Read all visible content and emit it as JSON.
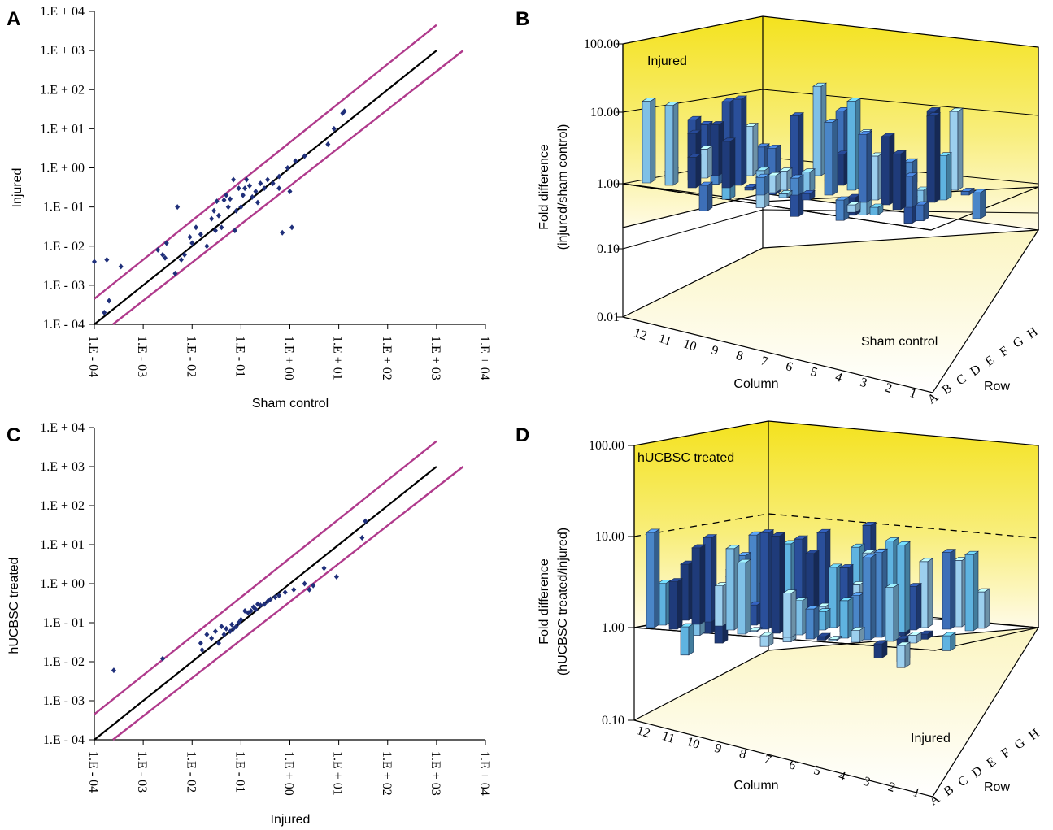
{
  "panels": [
    "A",
    "B",
    "C",
    "D"
  ],
  "chart_data": [
    {
      "panel": "A",
      "type": "scatter",
      "xlabel": "Sham control",
      "ylabel": "Injured",
      "scale": "log",
      "xlim": [
        0.0001,
        10000
      ],
      "ylim": [
        0.0001,
        10000
      ],
      "ticks": [
        "1.E - 04",
        "1.E - 03",
        "1.E - 02",
        "1.E - 01",
        "1.E + 00",
        "1.E + 01",
        "1.E + 02",
        "1.E + 03",
        "1.E + 04"
      ],
      "lines": {
        "identity_color": "#000000",
        "threshold_color": "#b03a8c"
      },
      "point_color": "#1f2f7a",
      "points": [
        [
          0.0001,
          0.004
        ],
        [
          0.00018,
          0.0045
        ],
        [
          0.00016,
          0.0002
        ],
        [
          0.0002,
          0.0004
        ],
        [
          0.00035,
          0.003
        ],
        [
          0.002,
          0.008
        ],
        [
          0.0025,
          0.006
        ],
        [
          0.0028,
          0.005
        ],
        [
          0.003,
          0.012
        ],
        [
          0.0045,
          0.002
        ],
        [
          0.005,
          0.1
        ],
        [
          0.006,
          0.0045
        ],
        [
          0.007,
          0.006
        ],
        [
          0.009,
          0.017
        ],
        [
          0.01,
          0.012
        ],
        [
          0.012,
          0.03
        ],
        [
          0.015,
          0.02
        ],
        [
          0.02,
          0.01
        ],
        [
          0.025,
          0.05
        ],
        [
          0.028,
          0.08
        ],
        [
          0.03,
          0.025
        ],
        [
          0.032,
          0.14
        ],
        [
          0.035,
          0.06
        ],
        [
          0.04,
          0.03
        ],
        [
          0.045,
          0.15
        ],
        [
          0.05,
          0.2
        ],
        [
          0.055,
          0.1
        ],
        [
          0.06,
          0.16
        ],
        [
          0.07,
          0.5
        ],
        [
          0.075,
          0.025
        ],
        [
          0.08,
          0.08
        ],
        [
          0.09,
          0.3
        ],
        [
          0.1,
          0.1
        ],
        [
          0.11,
          0.2
        ],
        [
          0.12,
          0.3
        ],
        [
          0.13,
          0.5
        ],
        [
          0.15,
          0.35
        ],
        [
          0.17,
          0.18
        ],
        [
          0.2,
          0.25
        ],
        [
          0.22,
          0.13
        ],
        [
          0.25,
          0.4
        ],
        [
          0.3,
          0.3
        ],
        [
          0.35,
          0.5
        ],
        [
          0.45,
          0.4
        ],
        [
          0.6,
          0.6
        ],
        [
          0.9,
          1.0
        ],
        [
          0.6,
          0.3
        ],
        [
          1.0,
          0.25
        ],
        [
          0.7,
          0.022
        ],
        [
          1.1,
          0.03
        ],
        [
          1.3,
          1.5
        ],
        [
          2.0,
          2.0
        ],
        [
          6.0,
          4.0
        ],
        [
          8.0,
          10.0
        ],
        [
          12,
          25
        ],
        [
          13,
          28
        ]
      ]
    },
    {
      "panel": "B",
      "type": "bar3d",
      "annotation_top": "Injured",
      "annotation_floor": "Sham control",
      "ylabel_line1": "Fold difference",
      "ylabel_line2": "(injured/sham control)",
      "zlabel": "Column",
      "xlabel": "Row",
      "y_ticks": [
        "100.00",
        "10.00",
        "1.00",
        "0.10",
        "0.01"
      ],
      "columns": [
        "12",
        "11",
        "10",
        "9",
        "8",
        "7",
        "6",
        "5",
        "4",
        "3",
        "2",
        "1"
      ],
      "rows": [
        "A",
        "B",
        "C",
        "D",
        "E",
        "F",
        "G",
        "H"
      ]
    },
    {
      "panel": "C",
      "type": "scatter",
      "xlabel": "Injured",
      "ylabel": "hUCBSC treated",
      "scale": "log",
      "xlim": [
        0.0001,
        10000
      ],
      "ylim": [
        0.0001,
        10000
      ],
      "ticks": [
        "1.E - 04",
        "1.E - 03",
        "1.E - 02",
        "1.E - 01",
        "1.E + 00",
        "1.E + 01",
        "1.E + 02",
        "1.E + 03",
        "1.E + 04"
      ],
      "lines": {
        "identity_color": "#000000",
        "threshold_color": "#b03a8c"
      },
      "point_color": "#1f2f7a",
      "points": [
        [
          0.00025,
          0.006
        ],
        [
          0.0025,
          0.012
        ],
        [
          0.015,
          0.03
        ],
        [
          0.016,
          0.02
        ],
        [
          0.02,
          0.05
        ],
        [
          0.025,
          0.04
        ],
        [
          0.03,
          0.06
        ],
        [
          0.035,
          0.03
        ],
        [
          0.04,
          0.08
        ],
        [
          0.045,
          0.05
        ],
        [
          0.05,
          0.07
        ],
        [
          0.06,
          0.06
        ],
        [
          0.065,
          0.09
        ],
        [
          0.07,
          0.07
        ],
        [
          0.08,
          0.08
        ],
        [
          0.09,
          0.1
        ],
        [
          0.1,
          0.12
        ],
        [
          0.12,
          0.2
        ],
        [
          0.14,
          0.18
        ],
        [
          0.16,
          0.2
        ],
        [
          0.18,
          0.25
        ],
        [
          0.2,
          0.22
        ],
        [
          0.22,
          0.3
        ],
        [
          0.25,
          0.28
        ],
        [
          0.3,
          0.3
        ],
        [
          0.35,
          0.35
        ],
        [
          0.4,
          0.4
        ],
        [
          0.5,
          0.45
        ],
        [
          0.6,
          0.5
        ],
        [
          0.8,
          0.6
        ],
        [
          1.2,
          0.7
        ],
        [
          2.0,
          1.0
        ],
        [
          2.5,
          0.7
        ],
        [
          3.0,
          0.9
        ],
        [
          5.0,
          2.5
        ],
        [
          9.0,
          1.5
        ],
        [
          30,
          15
        ],
        [
          35,
          40
        ]
      ]
    },
    {
      "panel": "D",
      "type": "bar3d",
      "annotation_top": "hUCBSC treated",
      "annotation_floor": "Injured",
      "ylabel_line1": "Fold difference",
      "ylabel_line2": "(hUCBSC treated/injured)",
      "zlabel": "Column",
      "xlabel": "Row",
      "y_ticks": [
        "100.00",
        "10.00",
        "1.00",
        "0.10"
      ],
      "columns": [
        "12",
        "11",
        "10",
        "9",
        "8",
        "7",
        "6",
        "5",
        "4",
        "3",
        "2",
        "1"
      ],
      "rows": [
        "A",
        "B",
        "C",
        "D",
        "E",
        "F",
        "G",
        "H"
      ]
    }
  ]
}
